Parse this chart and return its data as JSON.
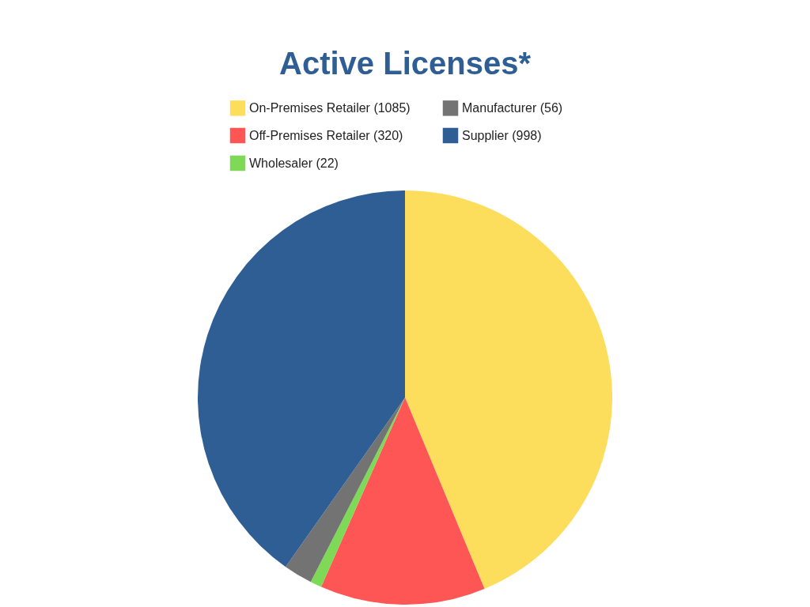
{
  "chart_data": {
    "type": "pie",
    "title": "Active Licenses*",
    "categories": [
      "On-Premises Retailer (1085)",
      "Off-Premises Retailer (320)",
      "Wholesaler (22)",
      "Manufacturer (56)",
      "Supplier (998)"
    ],
    "values": [
      1085,
      320,
      22,
      56,
      998
    ],
    "colors": [
      "#fddd5c",
      "#fe5555",
      "#7ed957",
      "#737373",
      "#2e5e94"
    ],
    "legend": "top"
  }
}
